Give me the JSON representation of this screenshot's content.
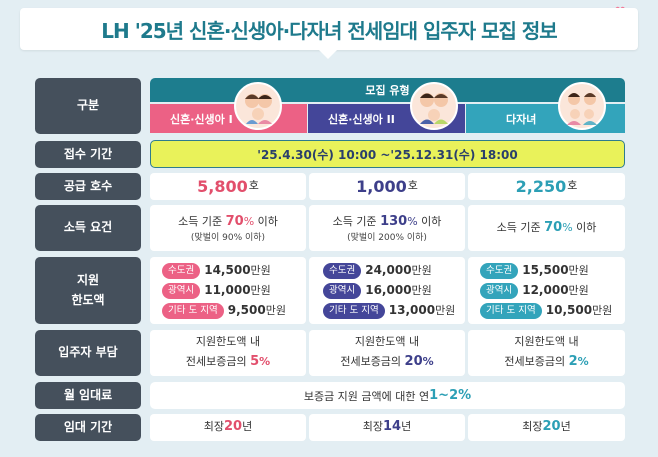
{
  "title": "LH '25년 신혼·신생아·다자녀 전세임대 입주자 모집 정보",
  "colors": {
    "pink": "#e24f6c",
    "navy": "#3d3f8a",
    "teal": "#2c9fb5",
    "header_teal": "#1d7d8e",
    "row_label": "#45505c",
    "period_bg": "#e9f25a"
  },
  "icons": [
    "heart-icon",
    "family-photo"
  ],
  "labels": {
    "category": "구분",
    "apply_period": "접수 기간",
    "supply": "공급 호수",
    "income": "소득 요건",
    "support_limit_1": "지원",
    "support_limit_2": "한도액",
    "tenant_burden": "입주자 부담",
    "monthly_rent": "월 임대료",
    "lease_period": "임대 기간"
  },
  "recruit_type_header": "모집 유형",
  "types": [
    {
      "name": "신혼·신생아 I"
    },
    {
      "name": "신혼·신생아 II"
    },
    {
      "name": "다자녀"
    }
  ],
  "apply_period": "'25.4.30(수) 10:00 ~'25.12.31(수) 18:00",
  "supply": [
    {
      "value": "5,800",
      "unit": "호"
    },
    {
      "value": "1,000",
      "unit": "호"
    },
    {
      "value": "2,250",
      "unit": "호"
    }
  ],
  "income": [
    {
      "pre": "소득 기준 ",
      "pct": "70",
      "sign": "%",
      "post": " 이하",
      "note": "(맞벌이 90% 이하)"
    },
    {
      "pre": "소득 기준 ",
      "pct": "130",
      "sign": "%",
      "post": " 이하",
      "note": "(맞벌이 200% 이하)"
    },
    {
      "pre": "소득 기준 ",
      "pct": "70",
      "sign": "%",
      "post": " 이하",
      "note": ""
    }
  ],
  "limits": [
    [
      {
        "region": "수도권",
        "amount": "14,500",
        "unit": "만원"
      },
      {
        "region": "광역시",
        "amount": "11,000",
        "unit": "만원"
      },
      {
        "region": "기타 도 지역",
        "amount": "9,500",
        "unit": "만원"
      }
    ],
    [
      {
        "region": "수도권",
        "amount": "24,000",
        "unit": "만원"
      },
      {
        "region": "광역시",
        "amount": "16,000",
        "unit": "만원"
      },
      {
        "region": "기타 도 지역",
        "amount": "13,000",
        "unit": "만원"
      }
    ],
    [
      {
        "region": "수도권",
        "amount": "15,500",
        "unit": "만원"
      },
      {
        "region": "광역시",
        "amount": "12,000",
        "unit": "만원"
      },
      {
        "region": "기타 도 지역",
        "amount": "10,500",
        "unit": "만원"
      }
    ]
  ],
  "burden": [
    {
      "line1": "지원한도액 내",
      "line2": "전세보증금의 ",
      "pct": "5",
      "sign": "%"
    },
    {
      "line1": "지원한도액 내",
      "line2": "전세보증금의 ",
      "pct": "20",
      "sign": "%"
    },
    {
      "line1": "지원한도액 내",
      "line2": "전세보증금의 ",
      "pct": "2",
      "sign": "%"
    }
  ],
  "monthly_rent": {
    "pre": "보증금 지원 금액에 대한 연 ",
    "value": "1~2%"
  },
  "lease": [
    {
      "pre": "최장 ",
      "years": "20",
      "unit": "년"
    },
    {
      "pre": "최장 ",
      "years": "14",
      "unit": "년"
    },
    {
      "pre": "최장 ",
      "years": "20",
      "unit": "년"
    }
  ]
}
